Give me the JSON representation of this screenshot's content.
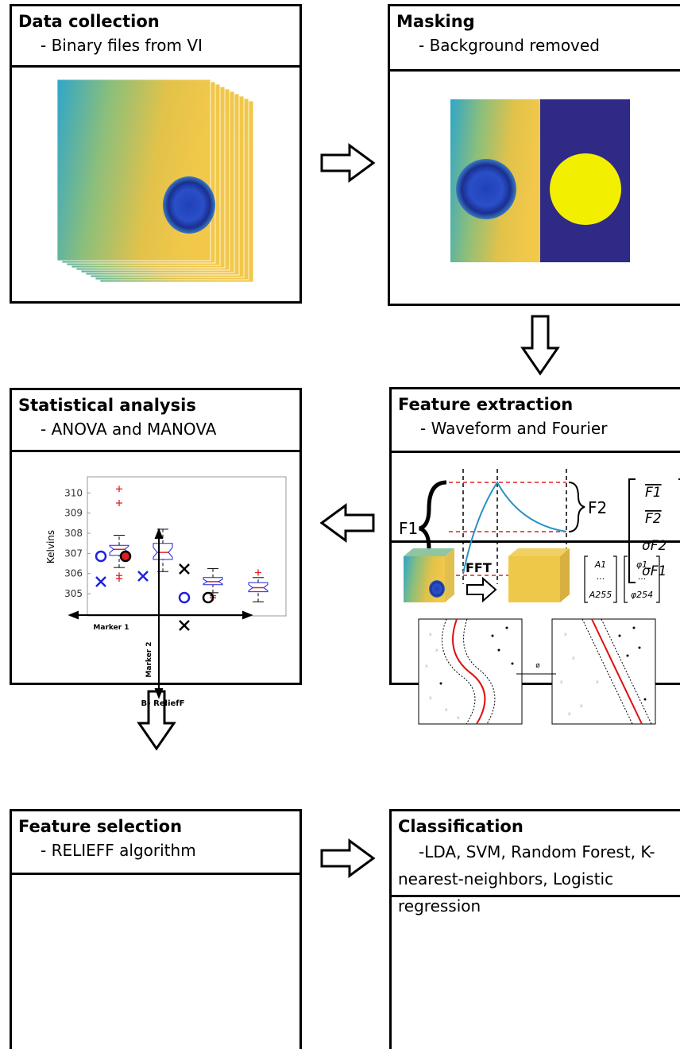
{
  "boxes": [
    {
      "title": "Data collection",
      "subtitle": "- Binary files from VI"
    },
    {
      "title": "Masking",
      "subtitle": "- Background removed"
    },
    {
      "title": "Statistical analysis",
      "subtitle": "- ANOVA and MANOVA"
    },
    {
      "title": "Feature extraction",
      "subtitle": "- Waveform and Fourier"
    },
    {
      "title": "Feature selection",
      "subtitle": "- RELIEFF algorithm"
    },
    {
      "title": "Classification",
      "subtitle": "-LDA, SVM, Random Forest, K-nearest-neighbors, Logistic regression"
    }
  ],
  "boxplot": {
    "ylabel": "Kelvins",
    "ylim": [
      303.9,
      310.8
    ],
    "yticks": [
      305,
      306,
      307,
      308,
      309,
      310
    ],
    "boxes": [
      {
        "low": 306.3,
        "q1": 306.9,
        "median": 307.2,
        "q3": 307.4,
        "high": 307.9,
        "outliers": [
          310.2,
          309.5,
          305.9,
          305.75
        ]
      },
      {
        "low": 306.1,
        "q1": 306.7,
        "median": 307.05,
        "q3": 307.5,
        "high": 308.2,
        "outliers": []
      },
      {
        "low": 305.05,
        "q1": 305.45,
        "median": 305.6,
        "q3": 305.8,
        "high": 306.25,
        "outliers": [
          304.9,
          304.8
        ]
      },
      {
        "low": 304.6,
        "q1": 305.1,
        "median": 305.3,
        "q3": 305.55,
        "high": 305.8,
        "outliers": [
          306.05
        ]
      }
    ]
  },
  "waveform": {
    "f1": "F1",
    "f2": "F2",
    "matrix": [
      "F1",
      "F2",
      "σF2",
      "σF1"
    ],
    "fft": "FFT",
    "amplitudes": [
      "A1",
      "...",
      "A255"
    ],
    "phases": [
      "φ1",
      "...",
      "φ254"
    ]
  },
  "relieff": {
    "xlabel": "Marker 1",
    "ylabel": "Marker 2",
    "caption": "B) ReliefF"
  },
  "mapping": {
    "label": "ø"
  }
}
